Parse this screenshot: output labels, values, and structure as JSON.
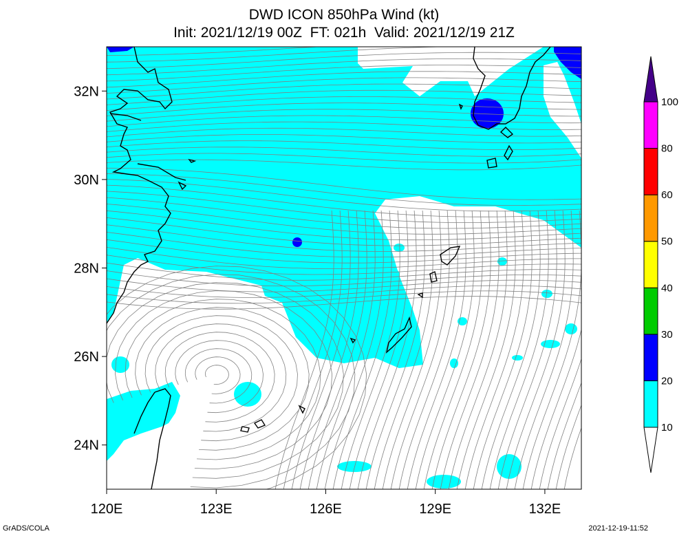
{
  "title": {
    "line1": "DWD ICON 850hPa Wind (kt)",
    "line2": "Init: 2021/12/19 00Z  FT: 021h  Valid: 2021/12/19 21Z"
  },
  "axes": {
    "lat_labels": [
      "32N",
      "30N",
      "28N",
      "26N",
      "24N"
    ],
    "lon_labels": [
      "120E",
      "123E",
      "126E",
      "129E",
      "132E"
    ],
    "lat_range": [
      23.0,
      33.0
    ],
    "lon_range": [
      120.0,
      133.0
    ]
  },
  "colorbar": {
    "labels": [
      "10",
      "20",
      "30",
      "40",
      "50",
      "60",
      "80",
      "100"
    ],
    "bins": [
      {
        "range": "10-20",
        "color": "#00ffff"
      },
      {
        "range": "20-30",
        "color": "#0000ff"
      },
      {
        "range": "30-40",
        "color": "#00cc00"
      },
      {
        "range": "40-50",
        "color": "#ffff00"
      },
      {
        "range": "50-60",
        "color": "#ff9900"
      },
      {
        "range": "60-80",
        "color": "#ff0000"
      },
      {
        "range": "80-100",
        "color": "#ff00ff"
      },
      {
        "range": ">100",
        "color": "#440088"
      }
    ]
  },
  "footer": {
    "left": "GrADS/COLA",
    "right": "2021-12-19-11:52"
  },
  "colors": {
    "wind_10_20": "#00ffff",
    "wind_20_30": "#0000ff",
    "coastline": "#000000",
    "streamline": "#808080"
  }
}
